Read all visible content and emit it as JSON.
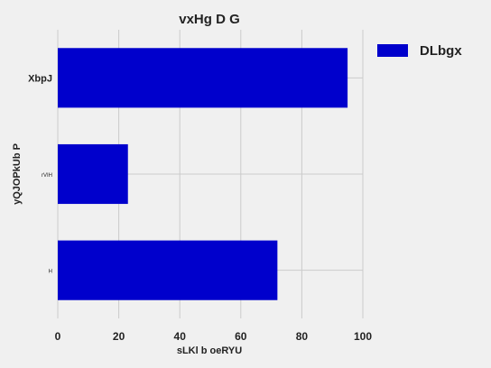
{
  "chart_data": {
    "type": "bar",
    "orientation": "horizontal",
    "title": "vxHg D G",
    "xlabel": "sLKl b oeRYU",
    "ylabel": "yQJOPkUb P",
    "categories": [
      "XbpJ",
      "rVIH",
      "H"
    ],
    "category_label_sizes": [
      "large",
      "small",
      "small"
    ],
    "series": [
      {
        "name": "DLbgx",
        "color": "#0000cc",
        "values": [
          95,
          23,
          72
        ]
      }
    ],
    "xlim": [
      0,
      100
    ],
    "xticks": [
      0,
      20,
      40,
      60,
      80,
      100
    ],
    "grid": true,
    "legend_position": "upper-right-outside"
  }
}
